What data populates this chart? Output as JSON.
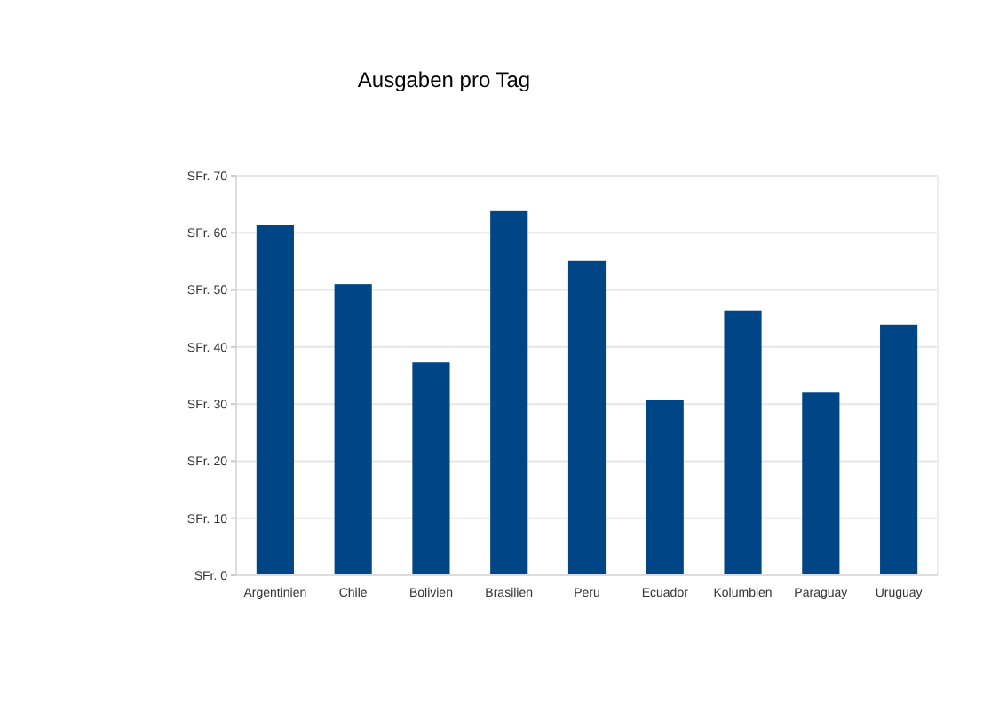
{
  "chart_data": {
    "type": "bar",
    "title": "Ausgaben pro Tag",
    "categories": [
      "Argentinien",
      "Chile",
      "Bolivien",
      "Brasilien",
      "Peru",
      "Ecuador",
      "Kolumbien",
      "Paraguay",
      "Uruguay"
    ],
    "values": [
      61.3,
      51.0,
      37.3,
      63.8,
      55.1,
      30.8,
      46.4,
      32.0,
      43.9
    ],
    "color": "#004586",
    "ylim": [
      0,
      70
    ],
    "yticks": [
      {
        "value": 0,
        "label": "SFr. 0"
      },
      {
        "value": 10,
        "label": "SFr. 10"
      },
      {
        "value": 20,
        "label": "SFr. 20"
      },
      {
        "value": 30,
        "label": "SFr. 30"
      },
      {
        "value": 40,
        "label": "SFr. 40"
      },
      {
        "value": 50,
        "label": "SFr. 50"
      },
      {
        "value": 60,
        "label": "SFr. 60"
      },
      {
        "value": 70,
        "label": "SFr. 70"
      }
    ],
    "grid": "y"
  }
}
